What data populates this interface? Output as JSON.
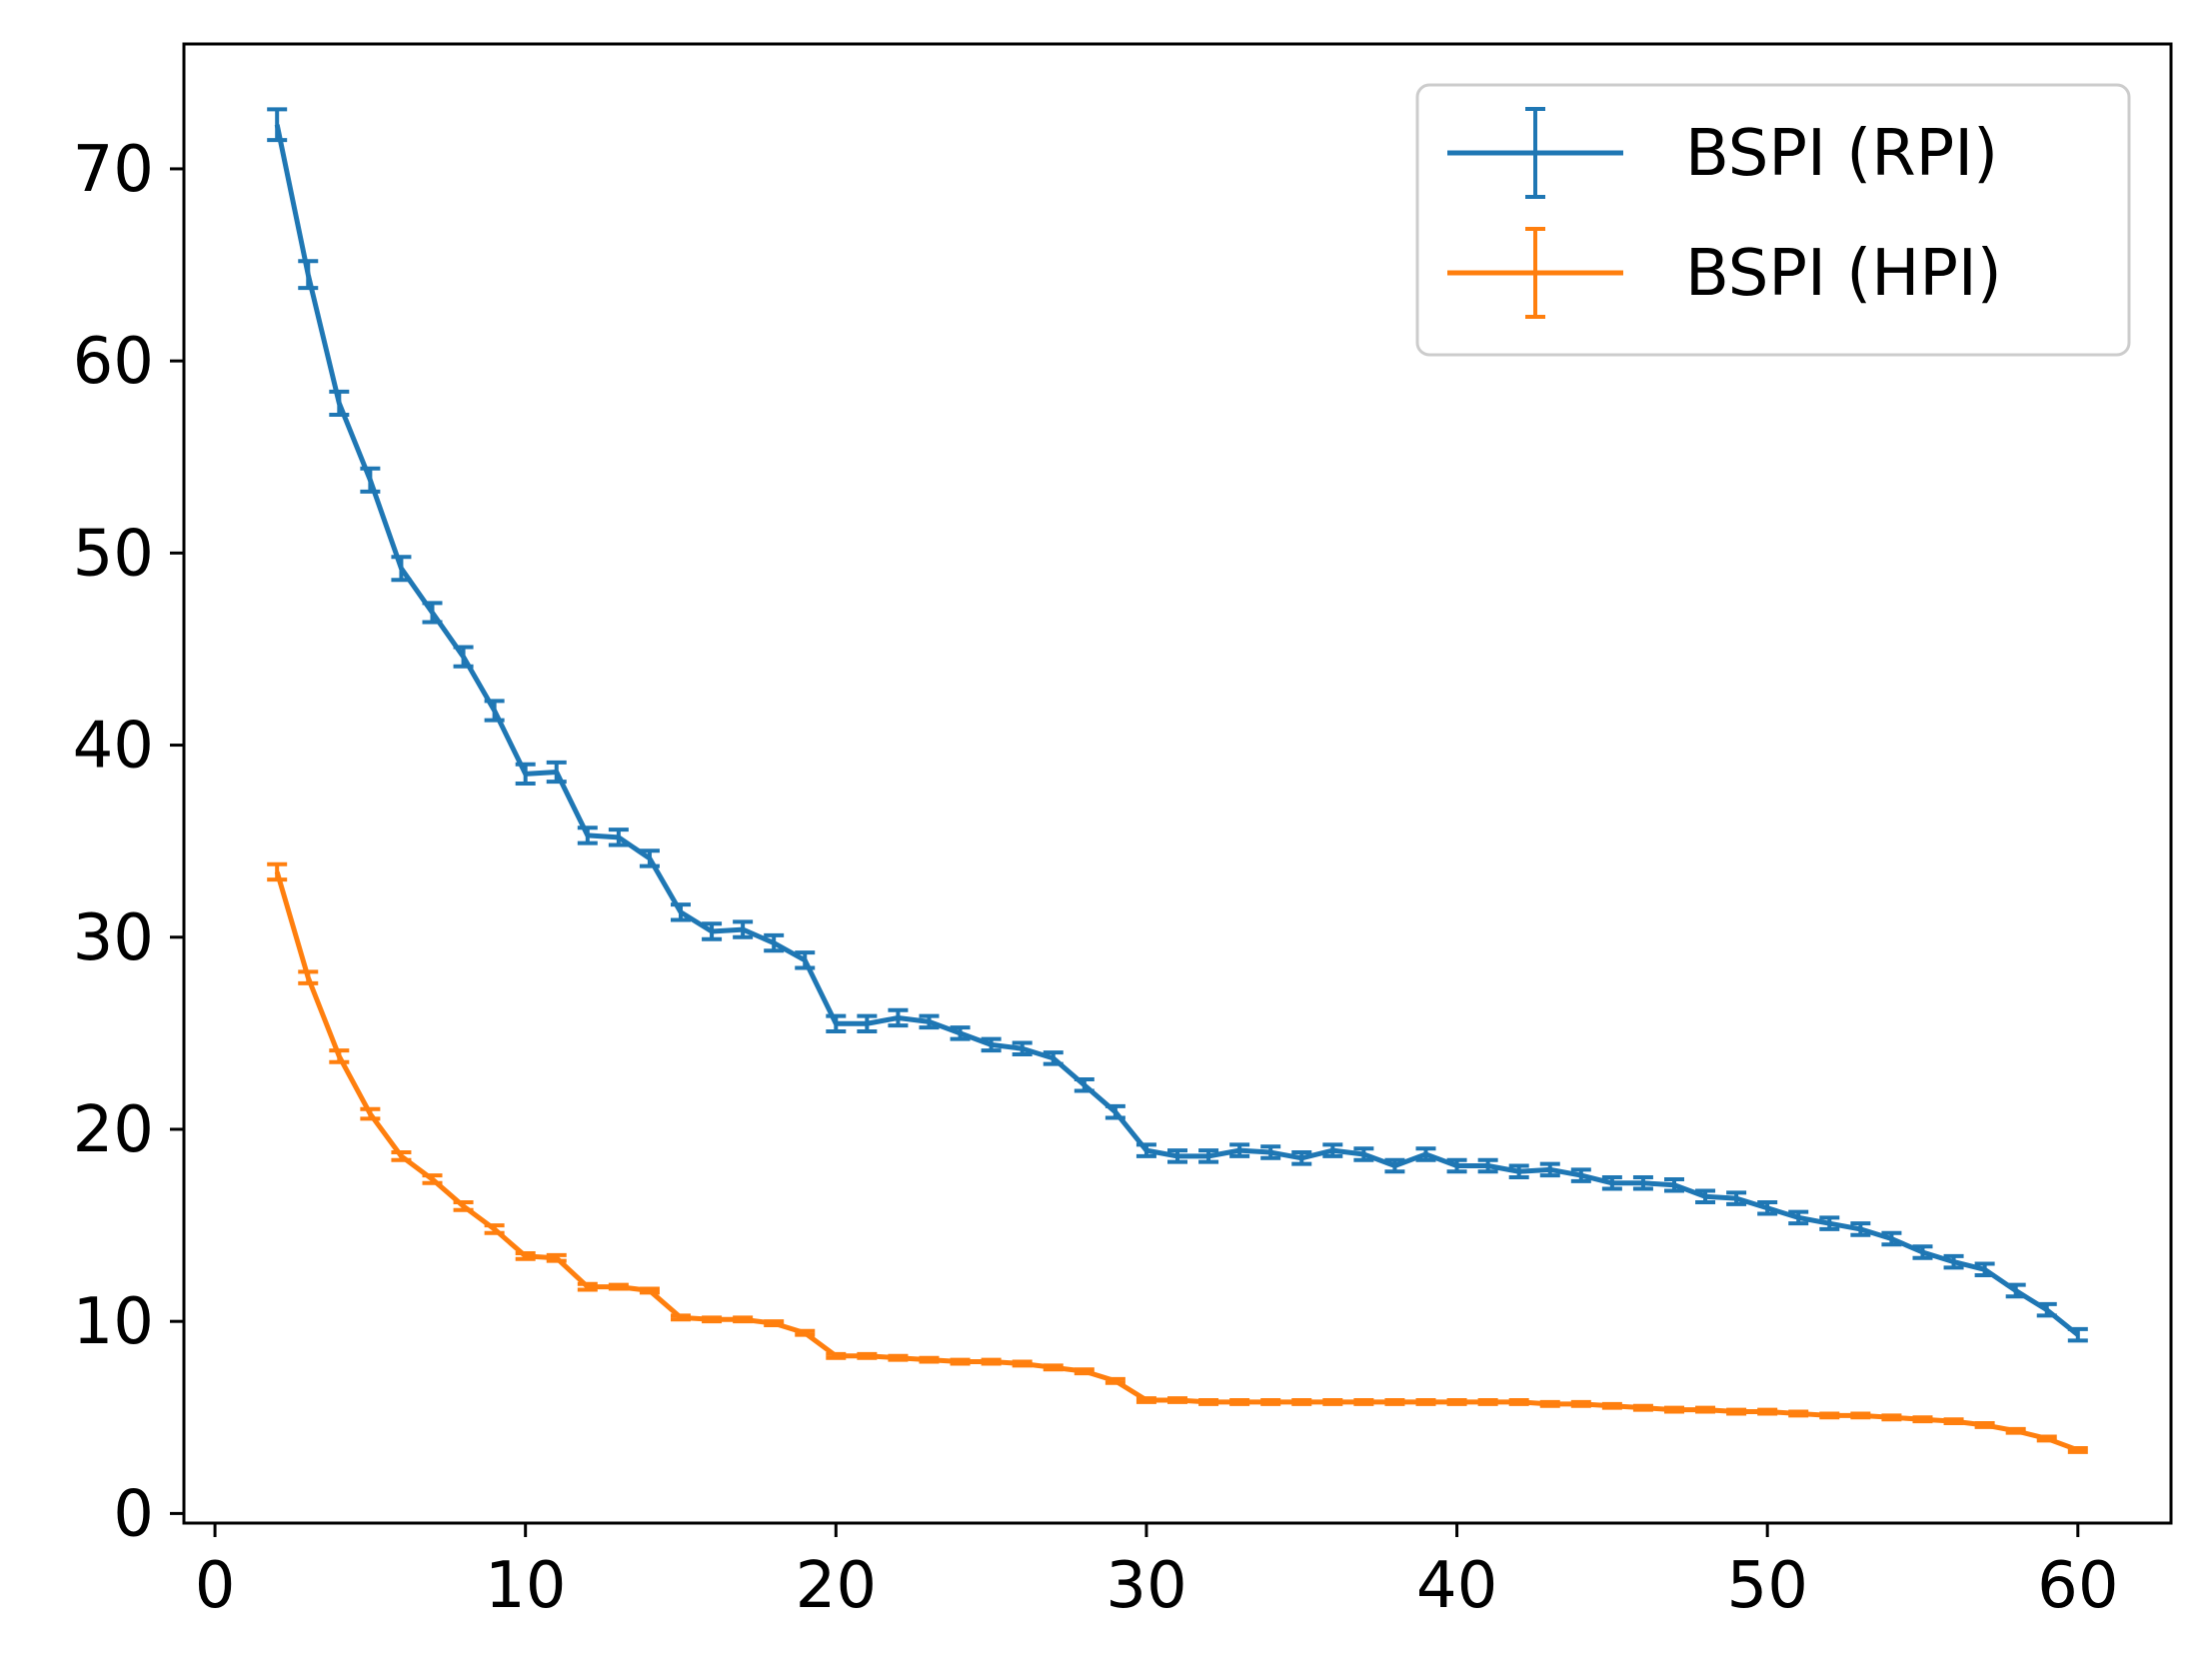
{
  "chart_data": {
    "type": "line",
    "title": "",
    "xlabel": "",
    "ylabel": "",
    "xlim": [
      -1,
      63
    ],
    "ylim": [
      -0.5,
      76.5
    ],
    "xticks": [
      0,
      10,
      20,
      30,
      40,
      50,
      60
    ],
    "yticks": [
      0,
      10,
      20,
      30,
      40,
      50,
      60,
      70
    ],
    "grid": false,
    "legend_position": "top-right",
    "x": [
      2,
      3,
      4,
      5,
      6,
      7,
      8,
      9,
      10,
      11,
      12,
      13,
      14,
      15,
      16,
      17,
      18,
      19,
      20,
      21,
      22,
      23,
      24,
      25,
      26,
      27,
      28,
      29,
      30,
      31,
      32,
      33,
      34,
      35,
      36,
      37,
      38,
      39,
      40,
      41,
      42,
      43,
      44,
      45,
      46,
      47,
      48,
      49,
      50,
      51,
      52,
      53,
      54,
      55,
      56,
      57,
      58,
      59,
      60
    ],
    "series": [
      {
        "name": "BSPI (RPI)",
        "color": "#1f77b4",
        "values": [
          72.3,
          64.5,
          57.8,
          53.8,
          49.2,
          46.9,
          44.6,
          41.8,
          38.5,
          38.6,
          35.3,
          35.2,
          34.1,
          31.3,
          30.3,
          30.4,
          29.7,
          28.8,
          25.5,
          25.5,
          25.8,
          25.6,
          25.0,
          24.4,
          24.2,
          23.7,
          22.3,
          20.9,
          18.9,
          18.6,
          18.6,
          18.9,
          18.8,
          18.5,
          18.9,
          18.7,
          18.1,
          18.7,
          18.1,
          18.1,
          17.8,
          17.9,
          17.6,
          17.2,
          17.2,
          17.1,
          16.5,
          16.4,
          15.9,
          15.4,
          15.1,
          14.8,
          14.3,
          13.6,
          13.1,
          12.7,
          11.6,
          10.6,
          9.3
        ],
        "errors": [
          0.8,
          0.7,
          0.6,
          0.6,
          0.6,
          0.5,
          0.5,
          0.5,
          0.5,
          0.5,
          0.4,
          0.4,
          0.4,
          0.4,
          0.4,
          0.4,
          0.4,
          0.4,
          0.4,
          0.4,
          0.4,
          0.3,
          0.3,
          0.3,
          0.3,
          0.3,
          0.3,
          0.3,
          0.3,
          0.3,
          0.3,
          0.3,
          0.3,
          0.3,
          0.3,
          0.3,
          0.3,
          0.3,
          0.3,
          0.3,
          0.3,
          0.3,
          0.3,
          0.3,
          0.3,
          0.3,
          0.3,
          0.3,
          0.3,
          0.3,
          0.3,
          0.3,
          0.3,
          0.3,
          0.3,
          0.3,
          0.3,
          0.3,
          0.3
        ]
      },
      {
        "name": "BSPI (HPI)",
        "color": "#ff7f0e",
        "values": [
          33.4,
          27.9,
          23.8,
          20.8,
          18.6,
          17.4,
          16.0,
          14.8,
          13.4,
          13.3,
          11.8,
          11.8,
          11.6,
          10.2,
          10.1,
          10.1,
          9.9,
          9.4,
          8.2,
          8.2,
          8.1,
          8.0,
          7.9,
          7.9,
          7.8,
          7.6,
          7.4,
          6.9,
          5.9,
          5.9,
          5.8,
          5.8,
          5.8,
          5.8,
          5.8,
          5.8,
          5.8,
          5.8,
          5.8,
          5.8,
          5.8,
          5.7,
          5.7,
          5.6,
          5.5,
          5.4,
          5.4,
          5.3,
          5.3,
          5.2,
          5.1,
          5.1,
          5.0,
          4.9,
          4.8,
          4.6,
          4.3,
          3.9,
          3.3
        ],
        "errors": [
          0.4,
          0.3,
          0.3,
          0.25,
          0.2,
          0.2,
          0.2,
          0.2,
          0.15,
          0.15,
          0.15,
          0.1,
          0.1,
          0.1,
          0.1,
          0.1,
          0.1,
          0.1,
          0.1,
          0.1,
          0.1,
          0.1,
          0.1,
          0.1,
          0.1,
          0.1,
          0.1,
          0.1,
          0.1,
          0.1,
          0.1,
          0.1,
          0.1,
          0.1,
          0.1,
          0.1,
          0.1,
          0.1,
          0.1,
          0.1,
          0.1,
          0.1,
          0.1,
          0.1,
          0.1,
          0.1,
          0.1,
          0.1,
          0.1,
          0.1,
          0.1,
          0.1,
          0.1,
          0.1,
          0.1,
          0.1,
          0.1,
          0.1,
          0.1
        ]
      }
    ]
  }
}
